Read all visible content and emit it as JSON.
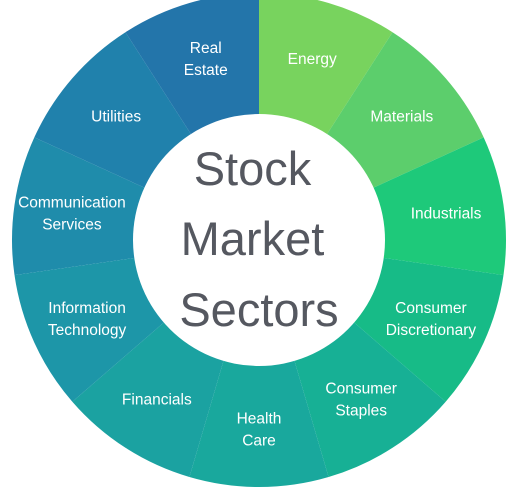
{
  "diagram": {
    "title_lines": [
      "Stock",
      "Market",
      "Sectors"
    ],
    "sectors": [
      {
        "lines": [
          "Energy"
        ],
        "color": "#78d35e"
      },
      {
        "lines": [
          "Materials"
        ],
        "color": "#5cce6c"
      },
      {
        "lines": [
          "Industrials"
        ],
        "color": "#1ec97a"
      },
      {
        "lines": [
          "Consumer",
          "Discretionary"
        ],
        "color": "#17bb87"
      },
      {
        "lines": [
          "Consumer",
          "Staples"
        ],
        "color": "#17b095"
      },
      {
        "lines": [
          "Health",
          "Care"
        ],
        "color": "#19a89d"
      },
      {
        "lines": [
          "Financials"
        ],
        "color": "#1ba2a1"
      },
      {
        "lines": [
          "Information",
          "Technology"
        ],
        "color": "#1d96a8"
      },
      {
        "lines": [
          "Communication",
          "Services"
        ],
        "color": "#1f8cab"
      },
      {
        "lines": [
          "Utilities"
        ],
        "color": "#2081ac"
      },
      {
        "lines": [
          "Real",
          "Estate"
        ],
        "color": "#2375aa"
      }
    ]
  }
}
